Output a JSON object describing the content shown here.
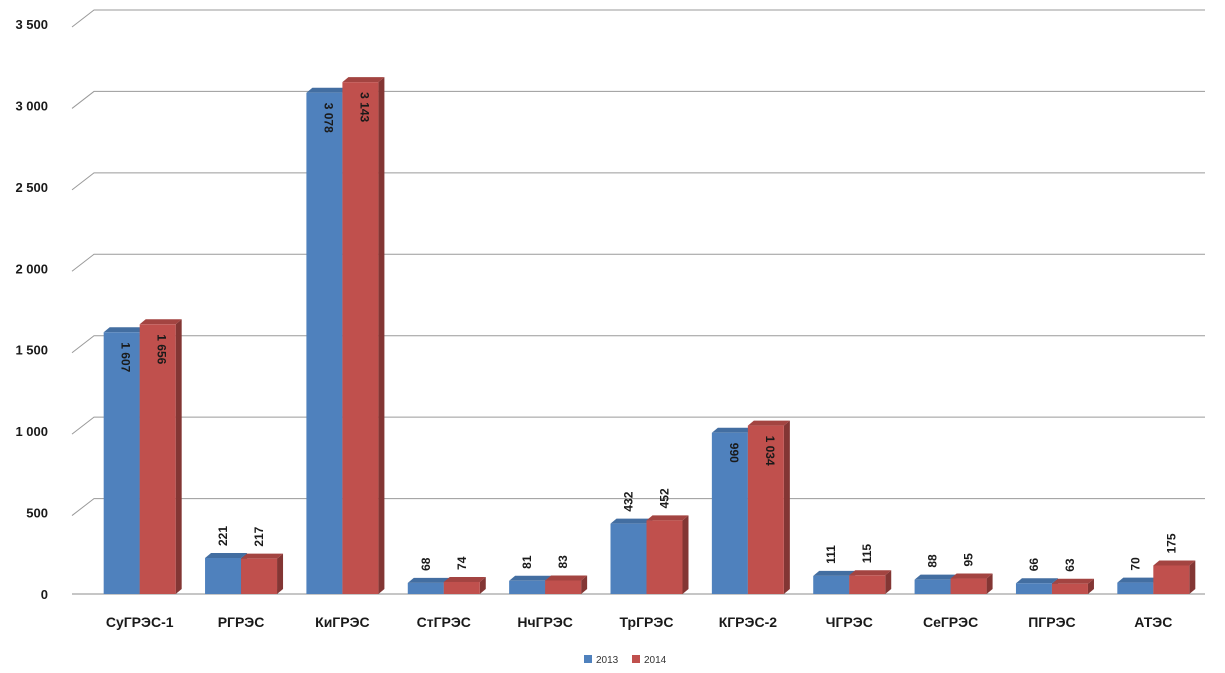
{
  "chart_data": {
    "type": "bar",
    "categories": [
      "СуГРЭС-1",
      "РГРЭС",
      "КиГРЭС",
      "СтГРЭС",
      "НчГРЭС",
      "ТрГРЭС",
      "КГРЭС-2",
      "ЧГРЭС",
      "СеГРЭС",
      "ПГРЭС",
      "АТЭС"
    ],
    "series": [
      {
        "name": "2013",
        "color": "#4f81bd",
        "values": [
          1607,
          221,
          3078,
          68,
          81,
          432,
          990,
          111,
          88,
          66,
          70
        ],
        "labels": [
          "1 607",
          "221",
          "3 078",
          "68",
          "81",
          "432",
          "990",
          "111",
          "88",
          "66",
          "70"
        ]
      },
      {
        "name": "2014",
        "color": "#c0504d",
        "values": [
          1656,
          217,
          3143,
          74,
          83,
          452,
          1034,
          115,
          95,
          63,
          175
        ],
        "labels": [
          "1 656",
          "217",
          "3 143",
          "74",
          "83",
          "452",
          "1 034",
          "115",
          "95",
          "63",
          "175"
        ]
      }
    ],
    "ylim": [
      0,
      3500
    ],
    "yticks": [
      {
        "value": 0,
        "label": "0"
      },
      {
        "value": 500,
        "label": "500"
      },
      {
        "value": 1000,
        "label": "1 000"
      },
      {
        "value": 1500,
        "label": "1 500"
      },
      {
        "value": 2000,
        "label": "2 000"
      },
      {
        "value": 2500,
        "label": "2 500"
      },
      {
        "value": 3000,
        "label": "3 000"
      },
      {
        "value": 3500,
        "label": "3 500"
      }
    ],
    "grid": true,
    "legend_position": "bottom-center"
  }
}
